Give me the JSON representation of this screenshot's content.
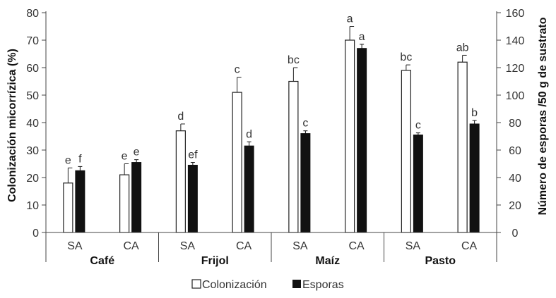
{
  "chart_data": {
    "type": "bar",
    "groups": [
      "Café",
      "Frijol",
      "Maíz",
      "Pasto"
    ],
    "treatments": [
      "SA",
      "CA"
    ],
    "categories": [
      "Café SA",
      "Café CA",
      "Frijol SA",
      "Frijol CA",
      "Maíz SA",
      "Maíz CA",
      "Pasto SA",
      "Pasto CA"
    ],
    "ylabel": "Colonización micorrízica (%)",
    "y2label": "Número de esporas /50 g de sustrato",
    "ylim": [
      0,
      80
    ],
    "y2lim": [
      0,
      160
    ],
    "yticks": [
      0,
      10,
      20,
      30,
      40,
      50,
      60,
      70,
      80
    ],
    "y2ticks": [
      0,
      20,
      40,
      60,
      80,
      100,
      120,
      140,
      160
    ],
    "legend_position": "bottom",
    "series": [
      {
        "name": "Colonización",
        "axis": "left",
        "color": "#ffffff",
        "values": [
          18,
          21,
          37,
          51,
          55,
          70,
          59,
          62
        ],
        "errors": [
          5.5,
          4,
          2.5,
          5.5,
          5,
          5,
          2,
          2.5
        ],
        "letters": [
          "e",
          "e",
          "d",
          "c",
          "bc",
          "a",
          "bc",
          "ab"
        ]
      },
      {
        "name": "Esporas",
        "axis": "right",
        "color": "#111111",
        "values": [
          45,
          51,
          49,
          63,
          72,
          134,
          71,
          79
        ],
        "errors": [
          3,
          2,
          2,
          3,
          2,
          3,
          1.5,
          2.5
        ],
        "letters": [
          "f",
          "e",
          "ef",
          "d",
          "c",
          "a",
          "c",
          "b"
        ]
      }
    ]
  }
}
